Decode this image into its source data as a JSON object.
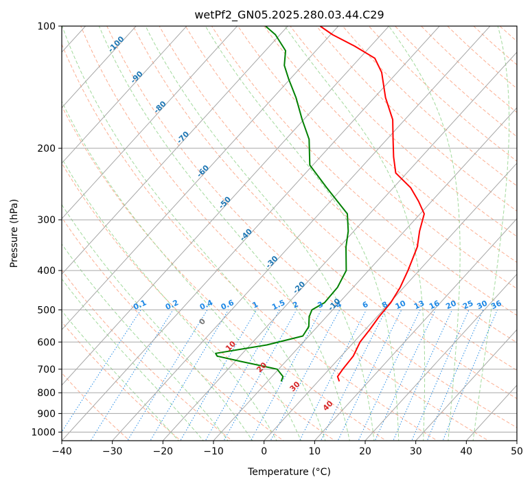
{
  "chart_data": {
    "type": "line",
    "title": "wetPf2_GN05.2025.280.03.44.C29",
    "xlabel": "Temperature (°C)",
    "ylabel": "Pressure (hPa)",
    "xlim": [
      -40,
      50
    ],
    "ylim": [
      1050,
      100
    ],
    "y_log_scale": true,
    "x_ticks": [
      -40,
      -30,
      -20,
      -10,
      0,
      10,
      20,
      30,
      40,
      50
    ],
    "y_ticks": [
      100,
      200,
      300,
      400,
      500,
      600,
      700,
      800,
      900,
      1000
    ],
    "grid": true,
    "skew_t": true,
    "series": [
      {
        "color": "#ff0000",
        "points": [
          [
            4.2,
            750
          ],
          [
            3.0,
            730
          ],
          [
            2.7,
            700
          ],
          [
            2.4,
            650
          ],
          [
            1.2,
            600
          ],
          [
            0.9,
            560
          ],
          [
            0.4,
            520
          ],
          [
            0.2,
            480
          ],
          [
            -0.7,
            440
          ],
          [
            -2.2,
            400
          ],
          [
            -4.6,
            350
          ],
          [
            -7.0,
            320
          ],
          [
            -9.2,
            290
          ],
          [
            -12.6,
            270
          ],
          [
            -16.6,
            250
          ],
          [
            -22.2,
            230
          ],
          [
            -25.5,
            210
          ],
          [
            -28.8,
            190
          ],
          [
            -32.4,
            170
          ],
          [
            -37.8,
            150
          ],
          [
            -43.1,
            130
          ],
          [
            -47.0,
            120
          ],
          [
            -53.2,
            112
          ],
          [
            -59.6,
            105
          ],
          [
            -63.6,
            100
          ]
        ]
      },
      {
        "color": "#008000",
        "points": [
          [
            -7.3,
            750
          ],
          [
            -7.8,
            730
          ],
          [
            -10.3,
            700
          ],
          [
            -18.8,
            670
          ],
          [
            -24.5,
            650
          ],
          [
            -25.3,
            640
          ],
          [
            -16.7,
            610
          ],
          [
            -11.2,
            580
          ],
          [
            -11.7,
            550
          ],
          [
            -13.4,
            520
          ],
          [
            -14.1,
            500
          ],
          [
            -12.9,
            480
          ],
          [
            -13.1,
            440
          ],
          [
            -14.4,
            400
          ],
          [
            -18.7,
            350
          ],
          [
            -21.1,
            320
          ],
          [
            -24.4,
            290
          ],
          [
            -33.2,
            250
          ],
          [
            -40.6,
            220
          ],
          [
            -45.4,
            190
          ],
          [
            -50.3,
            170
          ],
          [
            -55.5,
            150
          ],
          [
            -60.3,
            135
          ],
          [
            -63.6,
            125
          ],
          [
            -66.0,
            115
          ],
          [
            -70.9,
            105
          ],
          [
            -74.4,
            100
          ]
        ]
      }
    ],
    "isotherm_labels": [
      "-100",
      "-90",
      "-80",
      "-70",
      "-60",
      "-50",
      "-40",
      "-30",
      "-20",
      "-10"
    ],
    "mixing_ratio_labels": [
      "0.1",
      "0.2",
      "0.4",
      "0.6",
      "1",
      "1.5",
      "2",
      "3",
      "4",
      "6",
      "8",
      "10",
      "13",
      "16",
      "20",
      "25",
      "30",
      "36"
    ],
    "moist_adiabat_labels": [
      "0",
      "10",
      "20",
      "30",
      "40"
    ]
  },
  "colors": {
    "temperature": "#ff0000",
    "dewpoint": "#008000",
    "isotherm": "#a6a6a6",
    "dry_adiabat": "#fcae91",
    "moist_adiabat": "#a1d99b",
    "mixing_ratio": "#1e88e5",
    "isotherm_label": "#1f77b4",
    "moist_label": "#d62728"
  }
}
